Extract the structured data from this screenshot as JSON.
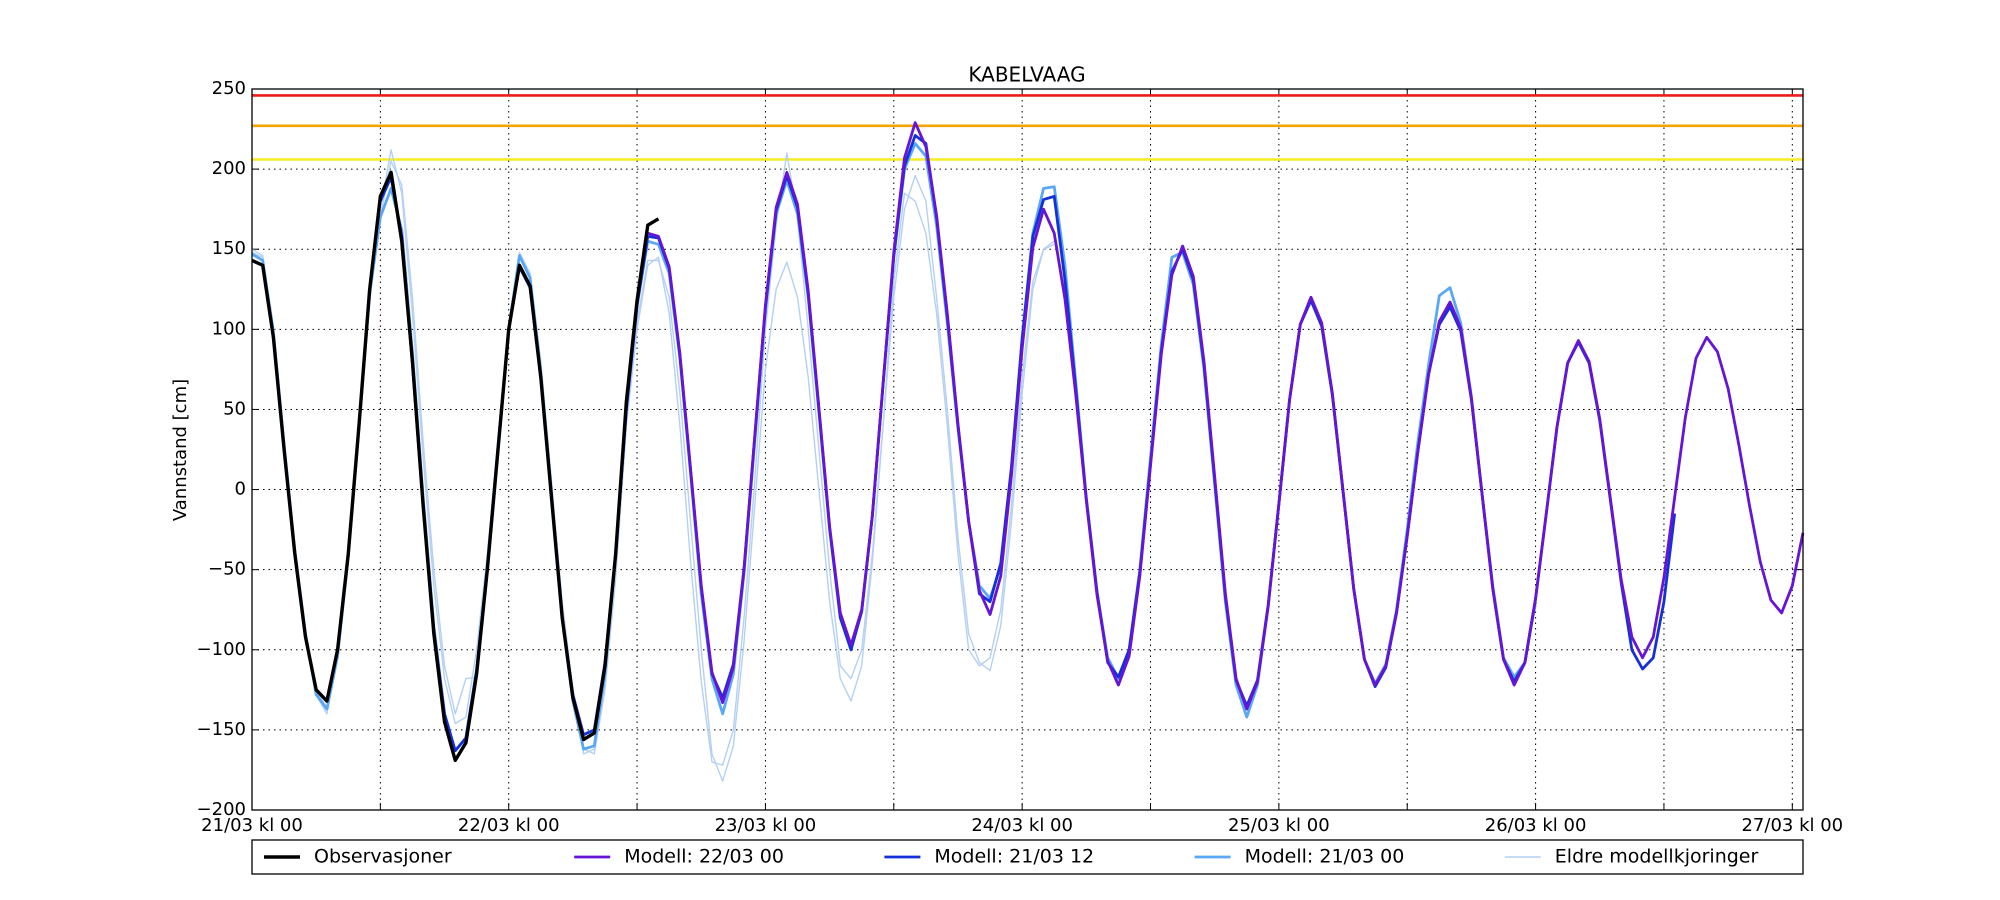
{
  "chart_data": {
    "type": "line",
    "title": "KABELVAAG",
    "y_label": "Vannstand [cm]",
    "xlim": [
      0,
      145
    ],
    "ylim": [
      -200,
      250
    ],
    "xticks": [
      {
        "value": 0,
        "label": "21/03 kl 00"
      },
      {
        "value": 24,
        "label": "22/03 kl 00"
      },
      {
        "value": 48,
        "label": "23/03 kl 00"
      },
      {
        "value": 72,
        "label": "24/03 kl 00"
      },
      {
        "value": 96,
        "label": "25/03 kl 00"
      },
      {
        "value": 120,
        "label": "26/03 kl 00"
      },
      {
        "value": 144,
        "label": "27/03 kl 00"
      }
    ],
    "minor_xticks": [
      12,
      36,
      60,
      84,
      108,
      132
    ],
    "yticks": [
      {
        "value": -200,
        "label": "−200"
      },
      {
        "value": -150,
        "label": "−150"
      },
      {
        "value": -100,
        "label": "−100"
      },
      {
        "value": -50,
        "label": "−50"
      },
      0,
      50,
      100,
      150,
      200,
      250
    ],
    "grid": true,
    "legend": "bottom",
    "reference_lines": [
      {
        "value": 246,
        "color": "#ee1c1c"
      },
      {
        "value": 227,
        "color": "#f5a300"
      },
      {
        "value": 206,
        "color": "#f5eb20"
      }
    ],
    "x": [
      0,
      1,
      2,
      3,
      4,
      5,
      6,
      7,
      8,
      9,
      10,
      11,
      12,
      13,
      14,
      15,
      16,
      17,
      18,
      19,
      20,
      21,
      22,
      23,
      24,
      25,
      26,
      27,
      28,
      29,
      30,
      31,
      32,
      33,
      34,
      35,
      36,
      37,
      38,
      39,
      40,
      41,
      42,
      43,
      44,
      45,
      46,
      47,
      48,
      49,
      50,
      51,
      52,
      53,
      54,
      55,
      56,
      57,
      58,
      59,
      60,
      61,
      62,
      63,
      64,
      65,
      66,
      67,
      68,
      69,
      70,
      71,
      72,
      73,
      74,
      75,
      76,
      77,
      78,
      79,
      80,
      81,
      82,
      83,
      84,
      85,
      86,
      87,
      88,
      89,
      90,
      91,
      92,
      93,
      94,
      95,
      96,
      97,
      98,
      99,
      100,
      101,
      102,
      103,
      104,
      105,
      106,
      107,
      108,
      109,
      110,
      111,
      112,
      113,
      114,
      115,
      116,
      117,
      118,
      119,
      120,
      121,
      122,
      123,
      124,
      125,
      126,
      127,
      128,
      129,
      130,
      131,
      132,
      133,
      134,
      135,
      136,
      137,
      138,
      139,
      140,
      141,
      142,
      143,
      144,
      145
    ],
    "series": [
      {
        "name": "Observasjoner",
        "color": "#000000",
        "width": 3.4,
        "values": [
          143,
          140,
          95,
          25,
          -40,
          -92,
          -125,
          -132,
          -100,
          -40,
          40,
          125,
          183,
          198,
          155,
          80,
          -10,
          -90,
          -145,
          -169,
          -158,
          -115,
          -50,
          25,
          100,
          140,
          127,
          70,
          -5,
          -80,
          -130,
          -156,
          -152,
          -110,
          -40,
          55,
          118,
          165,
          169,
          null,
          null,
          null,
          null,
          null,
          null,
          null,
          null,
          null,
          null,
          null,
          null,
          null,
          null,
          null,
          null,
          null,
          null,
          null,
          null,
          null,
          null,
          null,
          null,
          null,
          null,
          null,
          null,
          null,
          null,
          null,
          null,
          null,
          null,
          null,
          null,
          null,
          null,
          null,
          null,
          null,
          null,
          null,
          null,
          null,
          null,
          null,
          null,
          null,
          null,
          null,
          null,
          null,
          null,
          null,
          null,
          null,
          null,
          null,
          null,
          null,
          null,
          null,
          null,
          null,
          null,
          null,
          null,
          null,
          null,
          null,
          null,
          null,
          null,
          null,
          null,
          null,
          null,
          null,
          null,
          null,
          null,
          null,
          null,
          null,
          null,
          null,
          null,
          null,
          null,
          null,
          null,
          null,
          null,
          null,
          null,
          null,
          null,
          null,
          null,
          null,
          null,
          null,
          null,
          null,
          null,
          null
        ]
      },
      {
        "name": "Modell: 22/03 00",
        "color": "#6614d6",
        "width": 2.8,
        "values": [
          null,
          null,
          null,
          null,
          null,
          null,
          null,
          null,
          null,
          null,
          null,
          null,
          null,
          null,
          null,
          null,
          null,
          null,
          null,
          null,
          null,
          null,
          null,
          null,
          null,
          null,
          null,
          null,
          null,
          null,
          null,
          null,
          null,
          null,
          null,
          null,
          null,
          160,
          158,
          139,
          85,
          13,
          -60,
          -114,
          -133,
          -111,
          -50,
          33,
          115,
          176,
          198,
          178,
          124,
          51,
          -23,
          -77,
          -97,
          -75,
          -16,
          66,
          148,
          207,
          229,
          214,
          171,
          110,
          41,
          -20,
          -63,
          -78,
          -54,
          9,
          88,
          151,
          175,
          160,
          119,
          60,
          -7,
          -66,
          -107,
          -122,
          -104,
          -54,
          15,
          84,
          134,
          152,
          133,
          80,
          8,
          -65,
          -118,
          -137,
          -120,
          -73,
          -9,
          56,
          103,
          120,
          104,
          60,
          -1,
          -62,
          -106,
          -122,
          -110,
          -77,
          -29,
          24,
          72,
          105,
          117,
          101,
          57,
          -3,
          -62,
          -106,
          -122,
          -108,
          -68,
          -15,
          39,
          79,
          93,
          80,
          44,
          -6,
          -56,
          -92,
          -105,
          -92,
          -55,
          -5,
          45,
          82,
          95,
          86,
          63,
          28,
          -10,
          -45,
          -69,
          -77,
          -60,
          -27
        ]
      },
      {
        "name": "Modell: 21/03 12",
        "color": "#1430d8",
        "width": 2.8,
        "values": [
          null,
          null,
          null,
          null,
          null,
          null,
          null,
          null,
          null,
          null,
          null,
          null,
          180,
          195,
          158,
          78,
          -10,
          -88,
          -140,
          -163,
          -155,
          -113,
          -50,
          25,
          100,
          139,
          126,
          70,
          -5,
          -80,
          -128,
          -153,
          -150,
          -108,
          -40,
          50,
          115,
          158,
          157,
          138,
          84,
          12,
          -61,
          -115,
          -130,
          -109,
          -49,
          33,
          114,
          174,
          196,
          176,
          122,
          50,
          -24,
          -80,
          -100,
          -76,
          -16,
          66,
          146,
          202,
          221,
          216,
          170,
          108,
          40,
          -20,
          -65,
          -70,
          -46,
          14,
          94,
          158,
          181,
          183,
          131,
          64,
          -6,
          -64,
          -108,
          -117,
          -100,
          -52,
          16,
          86,
          136,
          150,
          131,
          78,
          6,
          -67,
          -119,
          -135,
          -119,
          -72,
          -9,
          56,
          103,
          118,
          102,
          59,
          -1,
          -62,
          -106,
          -123,
          -111,
          -77,
          -29,
          24,
          72,
          103,
          114,
          99,
          56,
          -3,
          -62,
          -106,
          -120,
          -108,
          -68,
          -15,
          39,
          79,
          92,
          79,
          43,
          -7,
          -58,
          -100,
          -112,
          -105,
          -70,
          -15,
          null,
          null,
          null,
          null,
          null,
          null,
          null,
          null,
          null,
          null,
          null,
          null
        ]
      },
      {
        "name": "Modell: 21/03 00",
        "color": "#5aa8f5",
        "width": 2.8,
        "values": [
          147,
          143,
          98,
          28,
          -38,
          -90,
          -128,
          -137,
          -104,
          -42,
          38,
          122,
          170,
          188,
          162,
          85,
          -5,
          -85,
          -140,
          -163,
          -155,
          -112,
          -48,
          28,
          100,
          146,
          132,
          73,
          -3,
          -80,
          -132,
          -162,
          -160,
          -115,
          -40,
          50,
          115,
          155,
          153,
          135,
          82,
          10,
          -65,
          -118,
          -140,
          -115,
          -52,
          30,
          112,
          172,
          193,
          172,
          120,
          48,
          -25,
          -80,
          -100,
          -76,
          -16,
          66,
          145,
          200,
          216,
          208,
          165,
          104,
          38,
          -20,
          -60,
          -68,
          -48,
          14,
          95,
          160,
          188,
          189,
          140,
          68,
          -5,
          -64,
          -105,
          -118,
          -100,
          -50,
          20,
          90,
          145,
          148,
          128,
          75,
          3,
          -70,
          -122,
          -142,
          -122,
          -73,
          -9,
          56,
          103,
          120,
          104,
          60,
          -1,
          -62,
          -106,
          -121,
          -109,
          -75,
          -25,
          30,
          78,
          121,
          126,
          104,
          58,
          -3,
          -60,
          -105,
          -117,
          -108,
          -70,
          null,
          null,
          null,
          null,
          null,
          null,
          null,
          null,
          null,
          null,
          null,
          null,
          null,
          null,
          null,
          null,
          null,
          null,
          null,
          null,
          null,
          null,
          null,
          null,
          null
        ]
      },
      {
        "name": "Eldre modellkjoringer",
        "color": "#b4d0f2",
        "width": 1.4,
        "values": [
          148,
          145,
          100,
          30,
          -38,
          -92,
          -128,
          -140,
          -105,
          -45,
          35,
          120,
          175,
          212,
          185,
          110,
          20,
          -60,
          -118,
          -146,
          -142,
          -100,
          -40,
          30,
          95,
          148,
          135,
          80,
          5,
          -70,
          -125,
          -165,
          -162,
          -120,
          -50,
          40,
          105,
          143,
          143,
          120,
          60,
          -20,
          -100,
          -165,
          -182,
          -160,
          -95,
          -10,
          75,
          125,
          142,
          120,
          70,
          0,
          -70,
          -118,
          -132,
          -110,
          -45,
          40,
          120,
          175,
          196,
          180,
          120,
          50,
          -30,
          -90,
          -108,
          -113,
          -85,
          -20,
          60,
          125,
          150,
          155,
          null,
          null,
          null,
          null,
          null,
          null,
          null,
          null,
          null,
          null,
          null,
          null,
          null,
          null,
          null,
          null,
          null,
          null,
          null,
          null,
          null,
          null,
          null,
          null,
          null,
          null,
          null,
          null,
          null,
          null,
          null,
          null,
          null,
          null,
          null,
          null,
          null,
          null,
          null,
          null,
          null,
          null,
          null,
          null,
          null,
          null,
          null,
          null,
          null,
          null,
          null,
          null,
          null,
          null,
          null,
          null,
          null,
          null,
          null,
          null,
          null,
          null,
          null,
          null,
          null,
          null,
          null,
          null,
          null,
          null
        ]
      },
      {
        "name": "Eldre modellkjoringer",
        "color": "#b4d0f2",
        "width": 1.4,
        "values": [
          150,
          146,
          102,
          32,
          -35,
          -90,
          -126,
          -136,
          -102,
          -42,
          38,
          118,
          170,
          205,
          190,
          120,
          30,
          -50,
          -110,
          -140,
          -118,
          -117,
          -45,
          30,
          95,
          146,
          132,
          78,
          5,
          -75,
          -128,
          -162,
          -165,
          -125,
          -55,
          40,
          100,
          140,
          145,
          110,
          40,
          -45,
          -120,
          -170,
          -172,
          -150,
          -80,
          5,
          100,
          165,
          210,
          170,
          100,
          25,
          -50,
          -110,
          -118,
          -100,
          -40,
          40,
          130,
          185,
          180,
          160,
          110,
          40,
          -40,
          -100,
          -110,
          -105,
          -75,
          -10,
          70,
          130,
          150,
          153,
          null,
          null,
          null,
          null,
          null,
          null,
          null,
          null,
          null,
          null,
          null,
          null,
          null,
          null,
          null,
          null,
          null,
          null,
          null,
          null,
          null,
          null,
          null,
          null,
          null,
          null,
          null,
          null,
          null,
          null,
          null,
          null,
          null,
          null,
          null,
          null,
          null,
          null,
          null,
          null,
          null,
          null,
          null,
          null,
          null,
          null,
          null,
          null,
          null,
          null,
          null,
          null,
          null,
          null,
          null,
          null,
          null,
          null,
          null,
          null,
          null,
          null,
          null,
          null,
          null,
          null,
          null,
          null,
          null,
          null
        ]
      }
    ]
  }
}
